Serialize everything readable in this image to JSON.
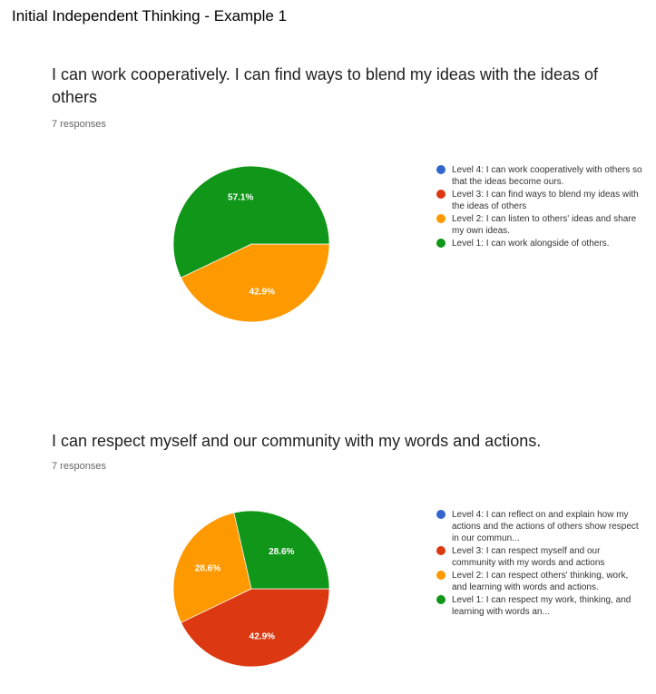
{
  "page_title": "Initial Independent Thinking - Example 1",
  "colors": {
    "level4": "#3366cc",
    "level3": "#dc3912",
    "level2": "#ff9900",
    "level1": "#109618"
  },
  "chart_data": [
    {
      "type": "pie",
      "title": "I can work cooperatively. I can find ways to blend my ideas with the ideas of others",
      "subtitle": "7 responses",
      "legend_position": "right",
      "series": [
        {
          "name": "Level 4: I can work cooperatively with others so that the ideas become ours.",
          "value": 0,
          "label": "",
          "color": "#3366cc"
        },
        {
          "name": "Level 3: I can find ways to blend my ideas with the ideas of others",
          "value": 0,
          "label": "",
          "color": "#dc3912"
        },
        {
          "name": "Level 2: I can listen to others' ideas and share my own ideas.",
          "value": 42.9,
          "label": "42.9%",
          "color": "#ff9900"
        },
        {
          "name": "Level 1: I can work alongside of others.",
          "value": 57.1,
          "label": "57.1%",
          "color": "#109618"
        }
      ]
    },
    {
      "type": "pie",
      "title": "I can respect myself and our community with my words and actions.",
      "subtitle": "7 responses",
      "legend_position": "right",
      "series": [
        {
          "name": "Level 4: I can reflect on and explain how my actions and the actions of others show respect in our commun...",
          "value": 0,
          "label": "",
          "color": "#3366cc"
        },
        {
          "name": "Level 3: I can respect myself and our community with my words and actions",
          "value": 42.9,
          "label": "42.9%",
          "color": "#dc3912"
        },
        {
          "name": "Level 2: I can respect others' thinking, work, and learning with words and actions.",
          "value": 28.6,
          "label": "28.6%",
          "color": "#ff9900"
        },
        {
          "name": "Level 1: I can respect my work, thinking, and learning with words an...",
          "value": 28.6,
          "label": "28.6%",
          "color": "#109618"
        }
      ]
    }
  ]
}
